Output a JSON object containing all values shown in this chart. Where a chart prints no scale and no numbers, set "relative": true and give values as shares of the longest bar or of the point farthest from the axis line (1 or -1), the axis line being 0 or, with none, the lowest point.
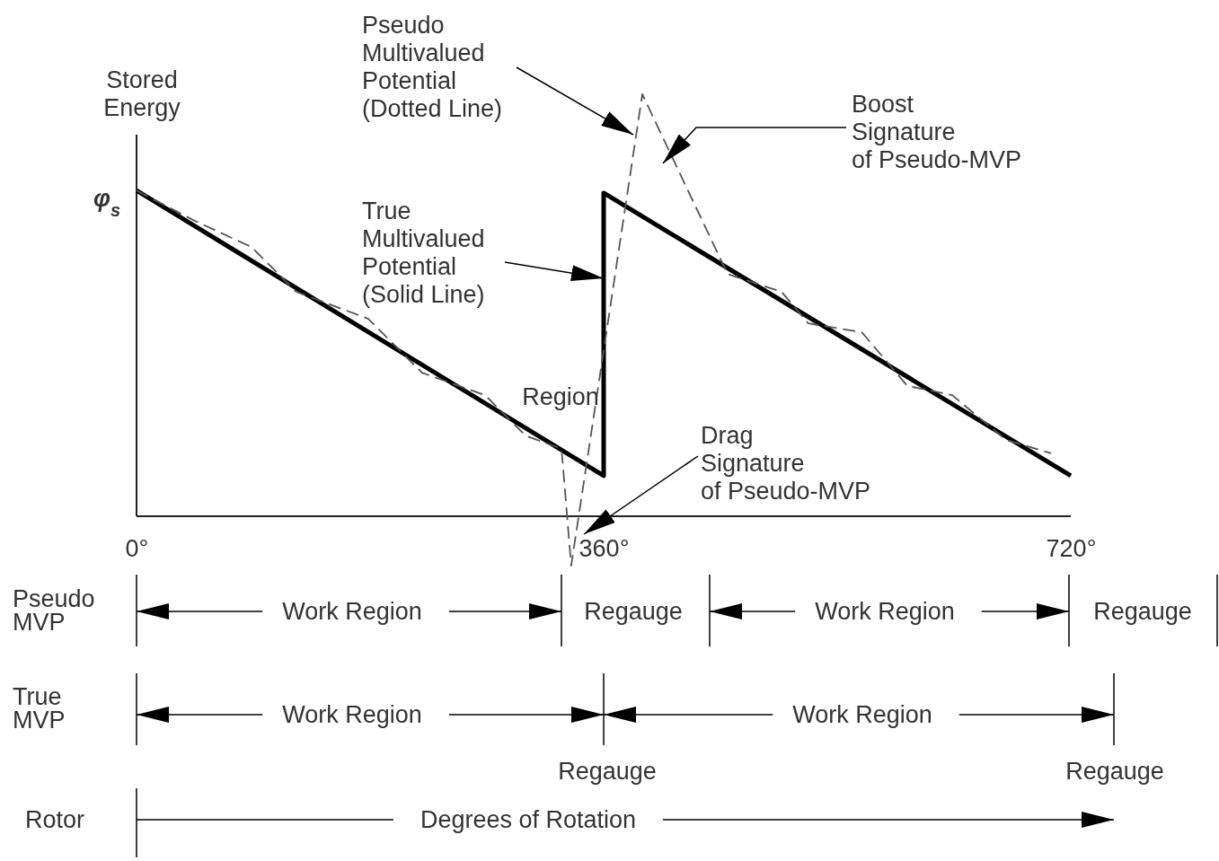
{
  "chart_data": {
    "type": "line",
    "relative": true,
    "ylabel": "Stored\nEnergy",
    "xlim": [
      0,
      720
    ],
    "xticks": [
      {
        "value": 0,
        "label": "0°"
      },
      {
        "value": 360,
        "label": "360°"
      },
      {
        "value": 720,
        "label": "720°"
      }
    ],
    "tick_labels": "x",
    "grid": false,
    "marker": "none",
    "series": [
      {
        "x": [
          0,
          360,
          360,
          720
        ],
        "values": [
          0.772,
          0.096,
          0.766,
          0.096
        ],
        "color": "#000000",
        "line_style": "solid"
      },
      {
        "x": [
          0,
          43.6,
          88.6,
          123,
          178.6,
          220,
          268.6,
          299.8,
          327.5,
          335,
          389.8,
          455.5,
          497,
          517.8,
          559,
          594,
          628.6,
          670,
          704.8
        ],
        "values": [
          0.772,
          0.702,
          0.638,
          0.532,
          0.468,
          0.34,
          0.287,
          0.191,
          0.16,
          -0.117,
          1.0,
          0.574,
          0.532,
          0.457,
          0.436,
          0.309,
          0.287,
          0.181,
          0.149
        ],
        "color": "#555555",
        "line_style": "dashed"
      }
    ],
    "annotations": [
      {
        "text": "φ$_{s}$",
        "x": 0,
        "y": 0.772
      },
      {
        "text": "Pseudo\nMultivalued\nPotential\n(Dotted Line)",
        "x": 382.8,
        "y": 0.904
      },
      "Boost\nSignature\nof Pseudo-MVP",
      {
        "text": "True\nMultivalued\nPotential\n(Solid Line)",
        "x": 360,
        "y": 0.564
      },
      "Region",
      "Drag\nSignature\nof Pseudo-MVP",
      "Pseudo\nMVP",
      "Work Region",
      "Regauge",
      "Work Region",
      "Regauge",
      "True\nMVP",
      "Work Region",
      "Work Region",
      "Regauge",
      "Regauge",
      "Rotor",
      "Degrees of Rotation"
    ]
  }
}
